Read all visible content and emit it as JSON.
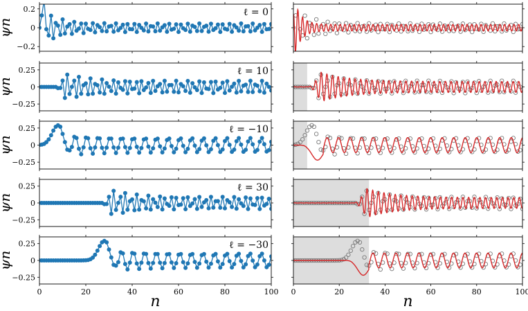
{
  "colors": {
    "points": "#1f77b4",
    "curve": "#d62728",
    "open_points": "#777777",
    "shade": "#dddddd"
  },
  "axes": {
    "xlabel": "n",
    "ylabel": "ψn",
    "xticks": [
      "0",
      "20",
      "40",
      "60",
      "80",
      "100"
    ],
    "yticks_top": [
      "0.2",
      "0",
      "−0.2"
    ],
    "yticks": [
      "0.25",
      "0",
      "−0.25"
    ]
  },
  "chart_data": [
    {
      "type": "line",
      "panel_label": "ℓ = 0",
      "ell": 0,
      "x_range": [
        0,
        100
      ],
      "ylim": [
        -0.25,
        0.25
      ],
      "shade_end": 0,
      "grid": false
    },
    {
      "type": "line",
      "panel_label": "ℓ = 10",
      "ell": 10,
      "x_range": [
        0,
        100
      ],
      "ylim": [
        -0.35,
        0.35
      ],
      "shade_end": 6,
      "grid": false
    },
    {
      "type": "line",
      "panel_label": "ℓ = −10",
      "ell": -10,
      "x_range": [
        0,
        100
      ],
      "ylim": [
        -0.35,
        0.35
      ],
      "shade_end": 6,
      "grid": false
    },
    {
      "type": "line",
      "panel_label": "ℓ = 30",
      "ell": 30,
      "x_range": [
        0,
        100
      ],
      "ylim": [
        -0.35,
        0.35
      ],
      "shade_end": 33,
      "grid": false
    },
    {
      "type": "line",
      "panel_label": "ℓ = −30",
      "ell": -30,
      "x_range": [
        0,
        100
      ],
      "ylim": [
        -0.35,
        0.35
      ],
      "shade_end": 33,
      "grid": false
    }
  ]
}
